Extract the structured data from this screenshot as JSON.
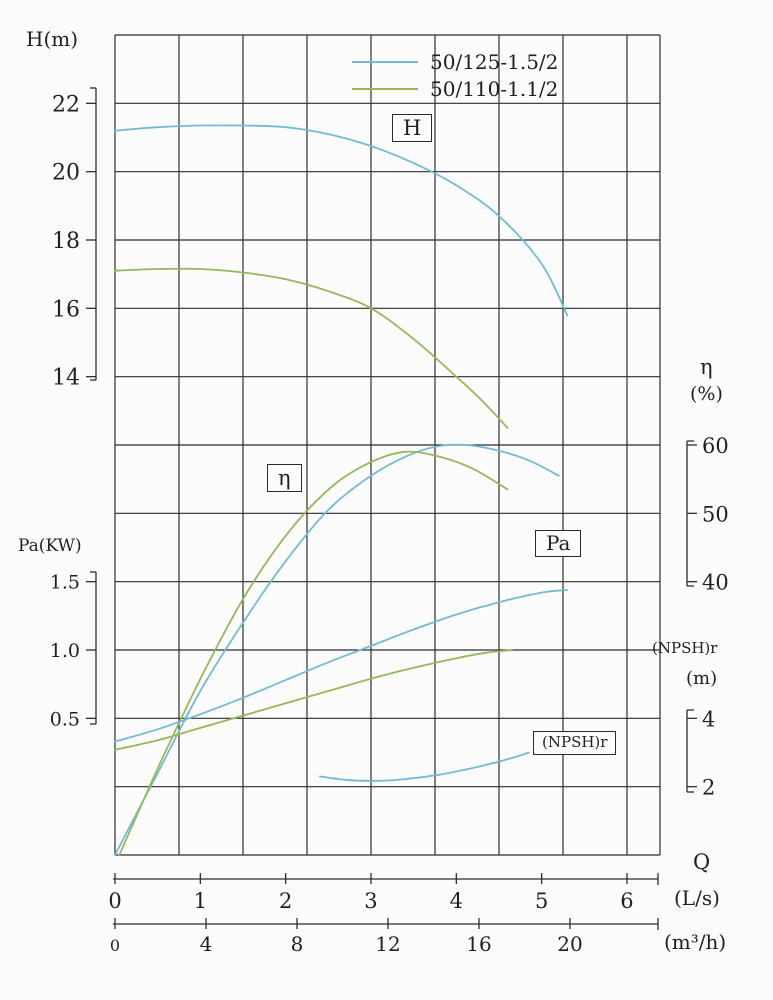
{
  "legend": {
    "items": [
      {
        "label": "50/125-1.5/2",
        "color": "#74bad5"
      },
      {
        "label": "50/110-1.1/2",
        "color": "#96b75a"
      }
    ]
  },
  "axes": {
    "left_top_title": "H(m)",
    "left_bottom_title": "Pa(KW)",
    "right_eta_title": "η",
    "right_eta_unit": "(%)",
    "right_npsh_title": "(NPSH)r",
    "right_npsh_unit": "(m)",
    "x_title": "Q",
    "x_unit_primary": "(L/s)",
    "x_unit_secondary": "(m³/h)",
    "h_ticks": [
      "22",
      "20",
      "18",
      "16",
      "14"
    ],
    "pa_ticks": [
      "1.5",
      "1.0",
      "0.5"
    ],
    "eta_ticks": [
      "60",
      "50",
      "40"
    ],
    "npsh_ticks": [
      "4",
      "2"
    ],
    "ls_ticks": [
      "0",
      "1",
      "2",
      "3",
      "4",
      "5",
      "6"
    ],
    "m3h_ticks": [
      "0",
      "4",
      "8",
      "12",
      "16",
      "20"
    ]
  },
  "curve_labels": {
    "h": "H",
    "eta": "η",
    "pa": "Pa",
    "npsh": "(NPSH)r"
  },
  "chart_data": {
    "type": "line",
    "x_axis": {
      "quantity": "Q",
      "units": [
        "L/s",
        "m³/h"
      ],
      "ls_ticks": [
        0,
        1,
        2,
        3,
        4,
        5,
        6
      ],
      "m3h_ticks": [
        0,
        4,
        8,
        12,
        16,
        20
      ],
      "visible_range_ls": [
        0,
        6.4
      ]
    },
    "y_axes": {
      "H": {
        "unit": "m",
        "ticks": [
          22,
          20,
          18,
          16,
          14
        ]
      },
      "Pa": {
        "unit": "KW",
        "ticks": [
          1.5,
          1.0,
          0.5
        ]
      },
      "eta": {
        "unit": "%",
        "ticks": [
          60,
          50,
          40
        ]
      },
      "NPSHr": {
        "unit": "m",
        "ticks": [
          4,
          2
        ]
      }
    },
    "legend_position": "top-center-inside",
    "grid": true,
    "series": [
      {
        "id": "H-50-125-1.5-2",
        "model": "50/125-1.5/2",
        "quantity": "H",
        "axis": "H",
        "unit": "m",
        "color": "#74bad5",
        "points": [
          [
            0,
            21.2
          ],
          [
            0.5,
            21.3
          ],
          [
            1,
            21.35
          ],
          [
            1.5,
            21.35
          ],
          [
            2,
            21.3
          ],
          [
            2.5,
            21.1
          ],
          [
            3,
            20.75
          ],
          [
            3.5,
            20.25
          ],
          [
            4,
            19.6
          ],
          [
            4.5,
            18.7
          ],
          [
            5,
            17.3
          ],
          [
            5.3,
            15.8
          ]
        ]
      },
      {
        "id": "H-50-110-1.1-2",
        "model": "50/110-1.1/2",
        "quantity": "H",
        "axis": "H",
        "unit": "m",
        "color": "#96b75a",
        "points": [
          [
            0,
            17.1
          ],
          [
            0.5,
            17.15
          ],
          [
            1,
            17.15
          ],
          [
            1.5,
            17.05
          ],
          [
            2,
            16.85
          ],
          [
            2.5,
            16.5
          ],
          [
            3,
            16.0
          ],
          [
            3.5,
            15.1
          ],
          [
            4,
            14.0
          ],
          [
            4.3,
            13.3
          ],
          [
            4.6,
            12.5
          ]
        ]
      },
      {
        "id": "eta-50-125-1.5-2",
        "model": "50/125-1.5/2",
        "quantity": "η",
        "axis": "eta",
        "unit": "%",
        "color": "#74bad5",
        "points": [
          [
            0,
            0
          ],
          [
            0.5,
            12
          ],
          [
            1,
            24
          ],
          [
            1.5,
            34
          ],
          [
            2,
            43
          ],
          [
            2.5,
            50.5
          ],
          [
            3,
            55.5
          ],
          [
            3.5,
            58.8
          ],
          [
            3.9,
            60
          ],
          [
            4.3,
            59.7
          ],
          [
            4.8,
            58
          ],
          [
            5.2,
            55.5
          ]
        ]
      },
      {
        "id": "eta-50-110-1.1-2",
        "model": "50/110-1.1/2",
        "quantity": "η",
        "axis": "eta",
        "unit": "%",
        "color": "#96b75a",
        "points": [
          [
            0.05,
            0
          ],
          [
            0.55,
            14
          ],
          [
            1.05,
            27
          ],
          [
            1.55,
            38.5
          ],
          [
            2.05,
            47.5
          ],
          [
            2.55,
            54
          ],
          [
            3,
            57.5
          ],
          [
            3.4,
            59
          ],
          [
            3.8,
            58.3
          ],
          [
            4.2,
            56.5
          ],
          [
            4.6,
            53.5
          ]
        ]
      },
      {
        "id": "Pa-50-125-1.5-2",
        "model": "50/125-1.5/2",
        "quantity": "Pa",
        "axis": "Pa",
        "unit": "KW",
        "color": "#74bad5",
        "points": [
          [
            0,
            0.33
          ],
          [
            0.5,
            0.42
          ],
          [
            1,
            0.53
          ],
          [
            1.5,
            0.65
          ],
          [
            2,
            0.78
          ],
          [
            2.5,
            0.91
          ],
          [
            3,
            1.03
          ],
          [
            3.5,
            1.15
          ],
          [
            4,
            1.26
          ],
          [
            4.5,
            1.35
          ],
          [
            5,
            1.42
          ],
          [
            5.3,
            1.44
          ]
        ]
      },
      {
        "id": "Pa-50-110-1.1-2",
        "model": "50/110-1.1/2",
        "quantity": "Pa",
        "axis": "Pa",
        "unit": "KW",
        "color": "#96b75a",
        "points": [
          [
            0,
            0.27
          ],
          [
            0.5,
            0.34
          ],
          [
            1,
            0.43
          ],
          [
            1.5,
            0.52
          ],
          [
            2,
            0.61
          ],
          [
            2.5,
            0.7
          ],
          [
            3,
            0.79
          ],
          [
            3.5,
            0.87
          ],
          [
            4,
            0.94
          ],
          [
            4.35,
            0.98
          ],
          [
            4.65,
            1.0
          ]
        ]
      },
      {
        "id": "NPSHr-50-125-1.5-2",
        "model": "50/125-1.5/2",
        "quantity": "(NPSH)r",
        "axis": "NPSHr",
        "unit": "m",
        "color": "#74bad5",
        "points": [
          [
            2.4,
            2.3
          ],
          [
            2.7,
            2.2
          ],
          [
            3.05,
            2.17
          ],
          [
            3.4,
            2.22
          ],
          [
            3.8,
            2.35
          ],
          [
            4.2,
            2.55
          ],
          [
            4.6,
            2.8
          ],
          [
            4.85,
            3.0
          ]
        ]
      }
    ]
  }
}
